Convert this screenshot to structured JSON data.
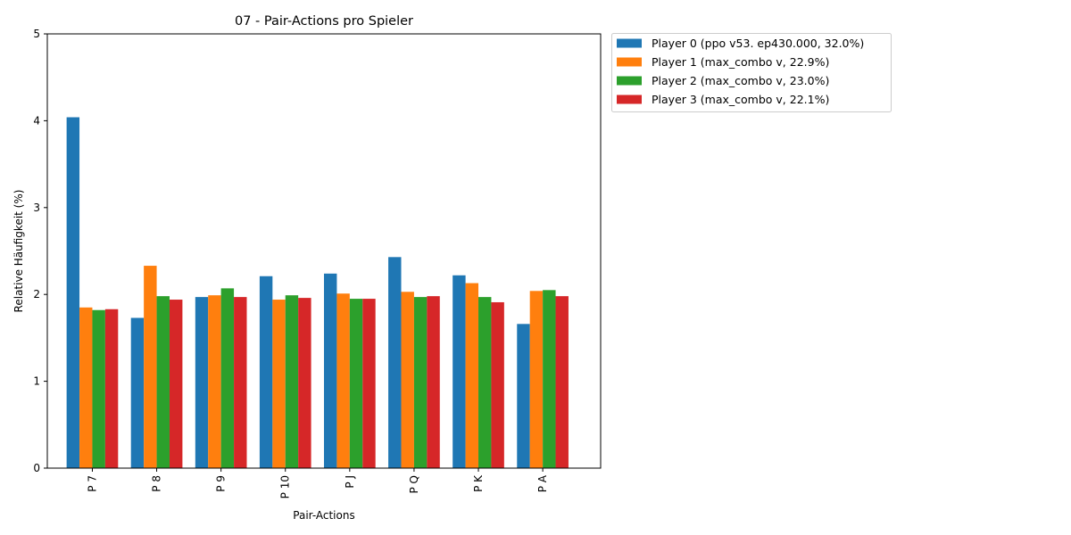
{
  "chart_data": {
    "type": "bar",
    "title": "07 - Pair-Actions pro Spieler",
    "xlabel": "Pair-Actions",
    "ylabel": "Relative Häufigkeit (%)",
    "ylim": [
      0,
      5
    ],
    "yticks": [
      "0",
      "1",
      "2",
      "3",
      "4",
      "5"
    ],
    "categories": [
      "P 7",
      "P 8",
      "P 9",
      "P 10",
      "P J",
      "P Q",
      "P K",
      "P A"
    ],
    "grid": false,
    "legend_position": "outside-top-right",
    "series": [
      {
        "name": "Player 0 (ppo v53. ep430.000, 32.0%)",
        "color": "#1f77b4",
        "values": [
          4.04,
          1.73,
          1.97,
          2.21,
          2.24,
          2.43,
          2.22,
          1.66
        ]
      },
      {
        "name": "Player 1 (max_combo v, 22.9%)",
        "color": "#ff7f0e",
        "values": [
          1.85,
          2.33,
          1.99,
          1.94,
          2.01,
          2.03,
          2.13,
          2.04
        ]
      },
      {
        "name": "Player 2 (max_combo v, 23.0%)",
        "color": "#2ca02c",
        "values": [
          1.82,
          1.98,
          2.07,
          1.99,
          1.95,
          1.97,
          1.97,
          2.05
        ]
      },
      {
        "name": "Player 3 (max_combo v, 22.1%)",
        "color": "#d62728",
        "values": [
          1.83,
          1.94,
          1.97,
          1.96,
          1.95,
          1.98,
          1.91,
          1.98
        ]
      }
    ]
  }
}
